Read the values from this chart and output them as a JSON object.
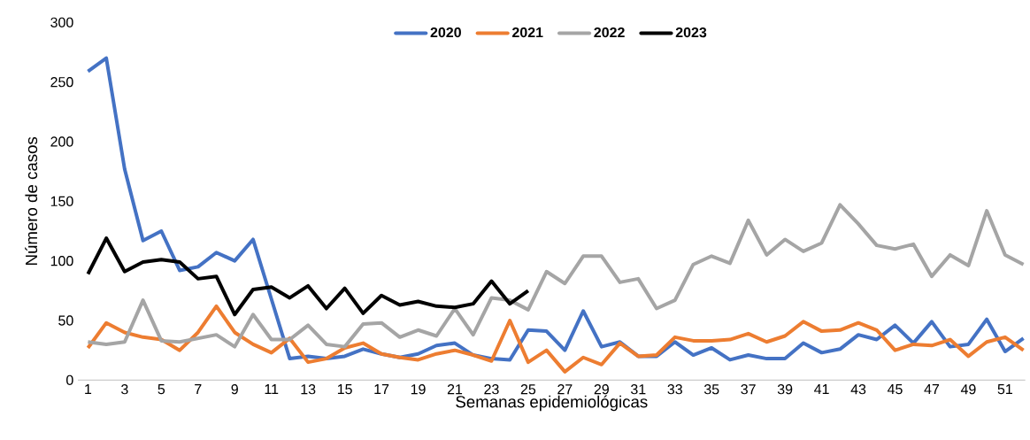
{
  "chart_data": {
    "type": "line",
    "xlabel": "Semanas epidemiológicas",
    "ylabel": "Número de casos",
    "categories": [
      "1",
      null,
      "3",
      null,
      "5",
      null,
      "7",
      null,
      "9",
      null,
      "11",
      null,
      "13",
      null,
      "15",
      null,
      "17",
      null,
      "19",
      null,
      "21",
      null,
      "23",
      null,
      "25",
      null,
      "27",
      null,
      "29",
      null,
      "31",
      null,
      "33",
      null,
      "35",
      null,
      "37",
      null,
      "39",
      null,
      "41",
      null,
      "43",
      null,
      "45",
      null,
      "47",
      null,
      "49",
      null,
      "51",
      null
    ],
    "ylim": [
      0,
      300
    ],
    "yticks": [
      0,
      50,
      100,
      150,
      200,
      250,
      300
    ],
    "grid": false,
    "legend": "top",
    "line_style": "solid",
    "series": [
      {
        "name": "2020",
        "color": "#4472c4",
        "values": [
          259,
          270,
          177,
          117,
          125,
          92,
          95,
          107,
          100,
          118,
          68,
          18,
          20,
          18,
          20,
          26,
          22,
          19,
          22,
          29,
          31,
          21,
          18,
          17,
          42,
          41,
          25,
          58,
          28,
          32,
          20,
          20,
          32,
          21,
          27,
          17,
          21,
          18,
          18,
          31,
          23,
          26,
          38,
          34,
          46,
          31,
          49,
          28,
          30,
          51,
          24,
          35
        ]
      },
      {
        "name": "2021",
        "color": "#ed7d31",
        "values": [
          27,
          48,
          40,
          36,
          34,
          25,
          40,
          62,
          40,
          30,
          23,
          35,
          15,
          18,
          27,
          31,
          22,
          19,
          17,
          22,
          25,
          21,
          16,
          50,
          15,
          25,
          7,
          19,
          13,
          31,
          20,
          21,
          36,
          33,
          33,
          34,
          39,
          32,
          37,
          49,
          41,
          42,
          48,
          42,
          25,
          30,
          29,
          34,
          20,
          32,
          36,
          25
        ]
      },
      {
        "name": "2022",
        "color": "#a5a5a5",
        "values": [
          32,
          30,
          32,
          67,
          33,
          32,
          35,
          38,
          28,
          55,
          34,
          34,
          46,
          30,
          28,
          47,
          48,
          36,
          42,
          37,
          60,
          38,
          69,
          67,
          59,
          91,
          81,
          104,
          104,
          82,
          85,
          60,
          67,
          97,
          104,
          98,
          134,
          105,
          118,
          108,
          115,
          147,
          131,
          113,
          110,
          114,
          87,
          105,
          96,
          142,
          105,
          97
        ]
      },
      {
        "name": "2023",
        "color": "#000000",
        "values": [
          89,
          119,
          91,
          99,
          101,
          99,
          85,
          87,
          55,
          76,
          78,
          69,
          79,
          60,
          77,
          56,
          71,
          63,
          66,
          62,
          61,
          64,
          83,
          64,
          75,
          null,
          null,
          null,
          null,
          null,
          null,
          null,
          null,
          null,
          null,
          null,
          null,
          null,
          null,
          null,
          null,
          null,
          null,
          null,
          null,
          null,
          null,
          null,
          null,
          null,
          null,
          null
        ]
      }
    ]
  }
}
